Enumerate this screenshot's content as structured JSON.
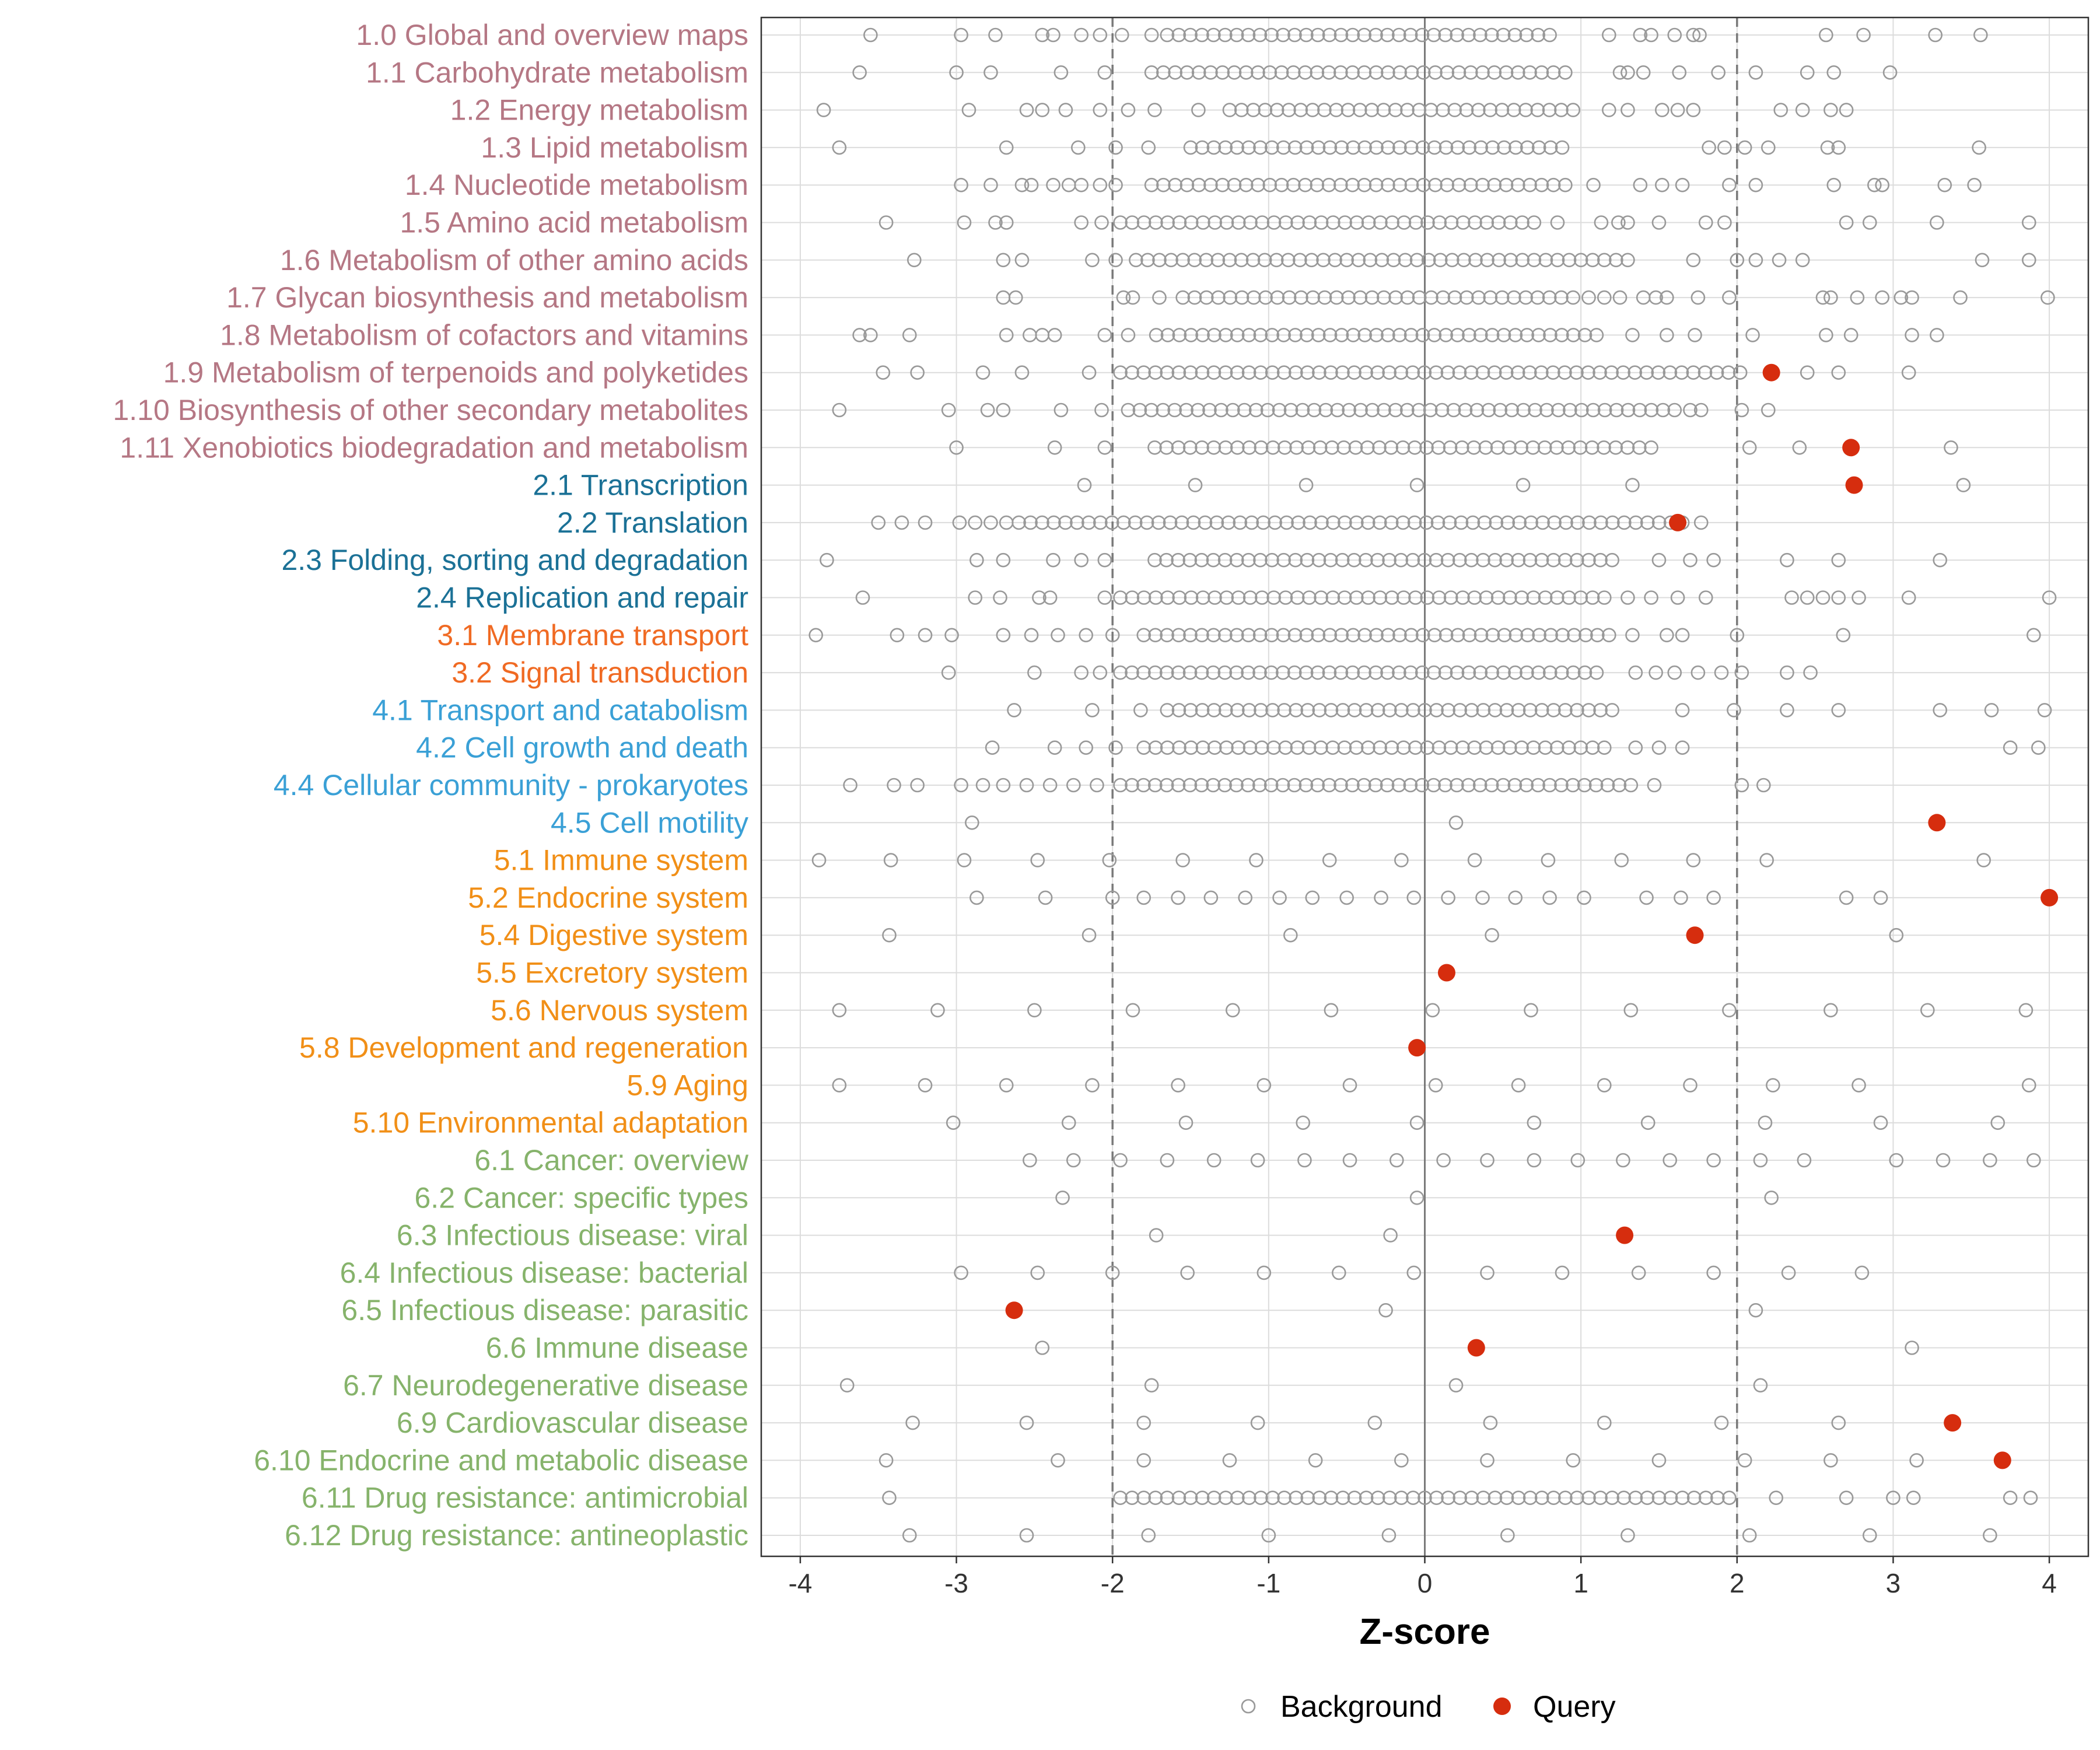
{
  "chart_data": {
    "type": "scatter",
    "title": "",
    "xlabel": "Z-score",
    "ylabel": "",
    "xlim": [
      -4.25,
      4.25
    ],
    "xticks": [
      -4,
      -3,
      -2,
      -1,
      0,
      1,
      2,
      3,
      4
    ],
    "reference_lines": {
      "solid": [
        0
      ],
      "dashed": [
        -2,
        2
      ]
    },
    "legend": {
      "placement": "bottom",
      "entries": [
        {
          "name": "Background",
          "style": "hollow",
          "color": "#999999"
        },
        {
          "name": "Query",
          "style": "filled",
          "color": "#d62d0e"
        }
      ]
    },
    "group_colors": {
      "1": "#b57784",
      "2": "#1b7196",
      "3": "#f06a23",
      "4": "#3aa0d6",
      "5": "#f18f17",
      "6": "#86b36b"
    },
    "categories": [
      {
        "label": "1.0 Global and overview maps",
        "group": "1",
        "background_extremes": [
          -3.55,
          -2.97,
          -2.75,
          -2.45,
          -2.38,
          -2.2,
          -2.08,
          -1.94,
          -1.75,
          1.18,
          1.38,
          1.45,
          1.6,
          1.72,
          1.76,
          2.57,
          2.81,
          3.27,
          3.56
        ],
        "background_dense_range": [
          -1.65,
          0.8
        ],
        "query": []
      },
      {
        "label": "1.1 Carbohydrate metabolism",
        "group": "1",
        "background_extremes": [
          -3.62,
          -3.0,
          -2.78,
          -2.33,
          -2.05,
          1.25,
          1.3,
          1.4,
          1.63,
          1.88,
          2.12,
          2.45,
          2.62,
          2.98
        ],
        "background_dense_range": [
          -1.75,
          0.9
        ],
        "query": []
      },
      {
        "label": "1.2 Energy metabolism",
        "group": "1",
        "background_extremes": [
          -3.85,
          -2.92,
          -2.55,
          -2.45,
          -2.3,
          -2.08,
          -1.9,
          -1.73,
          -1.45,
          1.18,
          1.3,
          1.52,
          1.62,
          1.72,
          2.28,
          2.42,
          2.6,
          2.7
        ],
        "background_dense_range": [
          -1.25,
          0.95
        ],
        "query": []
      },
      {
        "label": "1.3 Lipid metabolism",
        "group": "1",
        "background_extremes": [
          -3.75,
          -2.68,
          -2.22,
          -1.98,
          -1.77,
          1.82,
          1.92,
          2.05,
          2.2,
          2.58,
          2.65,
          3.55
        ],
        "background_dense_range": [
          -1.5,
          0.88
        ],
        "query": []
      },
      {
        "label": "1.4 Nucleotide metabolism",
        "group": "1",
        "background_extremes": [
          -2.97,
          -2.78,
          -2.58,
          -2.52,
          -2.38,
          -2.28,
          -2.2,
          -2.08,
          -1.98,
          1.08,
          1.38,
          1.52,
          1.65,
          1.95,
          2.12,
          2.62,
          2.88,
          2.93,
          3.33,
          3.52
        ],
        "background_dense_range": [
          -1.75,
          0.9
        ],
        "query": []
      },
      {
        "label": "1.5 Amino acid metabolism",
        "group": "1",
        "background_extremes": [
          -3.45,
          -2.95,
          -2.75,
          -2.68,
          -2.2,
          -2.07,
          0.85,
          1.13,
          1.24,
          1.3,
          1.5,
          1.8,
          1.92,
          2.7,
          2.85,
          3.28,
          3.87
        ],
        "background_dense_range": [
          -1.95,
          0.7
        ],
        "query": []
      },
      {
        "label": "1.6 Metabolism of other amino acids",
        "group": "1",
        "background_extremes": [
          -3.27,
          -2.7,
          -2.58,
          -2.13,
          -1.98,
          1.72,
          2.0,
          2.12,
          2.27,
          2.42,
          3.57,
          3.87
        ],
        "background_dense_range": [
          -1.85,
          1.3
        ],
        "query": []
      },
      {
        "label": "1.7 Glycan biosynthesis and metabolism",
        "group": "1",
        "background_extremes": [
          -2.7,
          -2.62,
          -1.93,
          -1.87,
          -1.7,
          1.05,
          1.15,
          1.25,
          1.4,
          1.48,
          1.55,
          1.75,
          1.95,
          2.55,
          2.6,
          2.77,
          2.93,
          3.05,
          3.12,
          3.43,
          3.99
        ],
        "background_dense_range": [
          -1.55,
          0.95
        ],
        "query": []
      },
      {
        "label": "1.8 Metabolism of cofactors and vitamins",
        "group": "1",
        "background_extremes": [
          -3.62,
          -3.55,
          -3.3,
          -2.68,
          -2.53,
          -2.45,
          -2.37,
          -2.05,
          -1.9,
          1.33,
          1.55,
          1.73,
          2.1,
          2.57,
          2.73,
          3.12,
          3.28
        ],
        "background_dense_range": [
          -1.72,
          1.1
        ],
        "query": []
      },
      {
        "label": "1.9 Metabolism of terpenoids and polyketides",
        "group": "1",
        "background_extremes": [
          -3.47,
          -3.25,
          -2.83,
          -2.58,
          -2.15,
          2.45,
          2.65,
          3.1
        ],
        "background_dense_range": [
          -1.95,
          2.02
        ],
        "query": [
          2.22
        ]
      },
      {
        "label": "1.10 Biosynthesis of other secondary metabolites",
        "group": "1",
        "background_extremes": [
          -3.75,
          -3.05,
          -2.8,
          -2.7,
          -2.33,
          -2.07,
          1.7,
          1.77,
          2.03,
          2.2
        ],
        "background_dense_range": [
          -1.9,
          1.6
        ],
        "query": []
      },
      {
        "label": "1.11 Xenobiotics biodegradation and metabolism",
        "group": "1",
        "background_extremes": [
          -3.0,
          -2.37,
          -2.05,
          2.08,
          2.4,
          3.37
        ],
        "background_dense_range": [
          -1.73,
          1.45
        ],
        "query": [
          2.73
        ]
      },
      {
        "label": "2.1 Transcription",
        "group": "2",
        "background_extremes": [
          -2.18,
          -1.47,
          -0.76,
          -0.05,
          0.63,
          1.33,
          3.45
        ],
        "background_dense_range": null,
        "query": [
          2.75
        ]
      },
      {
        "label": "2.2 Translation",
        "group": "2",
        "background_extremes": [
          -3.5,
          -3.35,
          -3.2,
          -2.98,
          -2.88,
          -2.78,
          -2.68,
          1.77
        ],
        "background_dense_range": [
          -2.6,
          1.65
        ],
        "query": [
          1.62
        ]
      },
      {
        "label": "2.3 Folding, sorting and degradation",
        "group": "2",
        "background_extremes": [
          -3.83,
          -2.87,
          -2.7,
          -2.38,
          -2.2,
          -2.05,
          1.5,
          1.7,
          1.85,
          2.32,
          2.65,
          3.3
        ],
        "background_dense_range": [
          -1.73,
          1.2
        ],
        "query": []
      },
      {
        "label": "2.4 Replication and repair",
        "group": "2",
        "background_extremes": [
          -3.6,
          -2.88,
          -2.72,
          -2.47,
          -2.4,
          -2.05,
          1.3,
          1.45,
          1.62,
          1.8,
          2.35,
          2.45,
          2.55,
          2.65,
          2.78,
          3.1,
          4.0
        ],
        "background_dense_range": [
          -1.95,
          1.15
        ],
        "query": []
      },
      {
        "label": "3.1 Membrane transport",
        "group": "3",
        "background_extremes": [
          -3.9,
          -3.38,
          -3.2,
          -3.03,
          -2.7,
          -2.52,
          -2.35,
          -2.17,
          -2.0,
          1.33,
          1.55,
          1.65,
          2.0,
          2.68,
          3.9
        ],
        "background_dense_range": [
          -1.8,
          1.18
        ],
        "query": []
      },
      {
        "label": "3.2 Signal transduction",
        "group": "3",
        "background_extremes": [
          -3.05,
          -2.5,
          -2.2,
          -2.08,
          1.35,
          1.48,
          1.6,
          1.75,
          1.9,
          2.03,
          2.32,
          2.47
        ],
        "background_dense_range": [
          -1.95,
          1.1
        ],
        "query": []
      },
      {
        "label": "4.1 Transport and catabolism",
        "group": "4",
        "background_extremes": [
          -2.63,
          -2.13,
          -1.82,
          1.65,
          1.98,
          2.32,
          2.65,
          3.3,
          3.63,
          3.97
        ],
        "background_dense_range": [
          -1.65,
          1.2
        ],
        "query": []
      },
      {
        "label": "4.2 Cell growth and death",
        "group": "4",
        "background_extremes": [
          -2.77,
          -2.37,
          -2.17,
          -1.98,
          1.35,
          1.5,
          1.65,
          3.75,
          3.93
        ],
        "background_dense_range": [
          -1.8,
          1.15
        ],
        "query": []
      },
      {
        "label": "4.4 Cellular community - prokaryotes",
        "group": "4",
        "background_extremes": [
          -3.68,
          -3.4,
          -3.25,
          -2.97,
          -2.83,
          -2.7,
          -2.55,
          -2.4,
          -2.25,
          -2.1,
          1.47,
          2.03,
          2.17
        ],
        "background_dense_range": [
          -1.95,
          1.32
        ],
        "query": []
      },
      {
        "label": "4.5 Cell motility",
        "group": "4",
        "background_extremes": [
          -2.9,
          0.2
        ],
        "background_dense_range": null,
        "query": [
          3.28
        ]
      },
      {
        "label": "5.1 Immune system",
        "group": "5",
        "background_extremes": [
          -3.88,
          -3.42,
          -2.95,
          -2.48,
          -2.02,
          -1.55,
          -1.08,
          -0.61,
          -0.15,
          0.32,
          0.79,
          1.26,
          1.72,
          2.19,
          3.58
        ],
        "background_dense_range": null,
        "query": []
      },
      {
        "label": "5.2 Endocrine system",
        "group": "5",
        "background_extremes": [
          -2.87,
          -2.43,
          -2.0,
          -1.8,
          -1.58,
          -1.37,
          -1.15,
          -0.93,
          -0.72,
          -0.5,
          -0.28,
          -0.07,
          0.15,
          0.37,
          0.58,
          0.8,
          1.02,
          1.42,
          1.64,
          1.85,
          2.7,
          2.92
        ],
        "background_dense_range": null,
        "query": [
          4.0
        ]
      },
      {
        "label": "5.4 Digestive system",
        "group": "5",
        "background_extremes": [
          -3.43,
          -2.15,
          -0.86,
          0.43,
          3.02
        ],
        "background_dense_range": null,
        "query": [
          1.73
        ]
      },
      {
        "label": "5.5 Excretory system",
        "group": "5",
        "background_extremes": [],
        "background_dense_range": null,
        "query": [
          0.14
        ]
      },
      {
        "label": "5.6 Nervous system",
        "group": "5",
        "background_extremes": [
          -3.75,
          -3.12,
          -2.5,
          -1.87,
          -1.23,
          -0.6,
          0.05,
          0.68,
          1.32,
          1.95,
          2.6,
          3.22,
          3.85
        ],
        "background_dense_range": null,
        "query": []
      },
      {
        "label": "5.8 Development and regeneration",
        "group": "5",
        "background_extremes": [],
        "background_dense_range": null,
        "query": [
          -0.05
        ]
      },
      {
        "label": "5.9 Aging",
        "group": "5",
        "background_extremes": [
          -3.75,
          -3.2,
          -2.68,
          -2.13,
          -1.58,
          -1.03,
          -0.48,
          0.07,
          0.6,
          1.15,
          1.7,
          2.23,
          2.78,
          3.87
        ],
        "background_dense_range": null,
        "query": []
      },
      {
        "label": "5.10 Environmental adaptation",
        "group": "5",
        "background_extremes": [
          -3.02,
          -2.28,
          -1.53,
          -0.78,
          -0.05,
          0.7,
          1.43,
          2.18,
          2.92,
          3.67
        ],
        "background_dense_range": null,
        "query": []
      },
      {
        "label": "6.1 Cancer: overview",
        "group": "6",
        "background_extremes": [
          -2.53,
          -2.25,
          -1.95,
          -1.65,
          -1.35,
          -1.07,
          -0.77,
          -0.48,
          -0.18,
          0.12,
          0.4,
          0.7,
          0.98,
          1.27,
          1.57,
          1.85,
          2.15,
          2.43,
          3.02,
          3.32,
          3.62,
          3.9
        ],
        "background_dense_range": null,
        "query": []
      },
      {
        "label": "6.2 Cancer: specific types",
        "group": "6",
        "background_extremes": [
          -2.32,
          -0.05,
          2.22
        ],
        "background_dense_range": null,
        "query": []
      },
      {
        "label": "6.3 Infectious disease: viral",
        "group": "6",
        "background_extremes": [
          -1.72,
          -0.22
        ],
        "background_dense_range": null,
        "query": [
          1.28
        ]
      },
      {
        "label": "6.4 Infectious disease: bacterial",
        "group": "6",
        "background_extremes": [
          -2.97,
          -2.48,
          -2.0,
          -1.52,
          -1.03,
          -0.55,
          -0.07,
          0.4,
          0.88,
          1.37,
          1.85,
          2.33,
          2.8
        ],
        "background_dense_range": null,
        "query": []
      },
      {
        "label": "6.5 Infectious disease: parasitic",
        "group": "6",
        "background_extremes": [
          -0.25,
          2.12
        ],
        "background_dense_range": null,
        "query": [
          -2.63
        ]
      },
      {
        "label": "6.6 Immune disease",
        "group": "6",
        "background_extremes": [
          -2.45,
          3.12
        ],
        "background_dense_range": null,
        "query": [
          0.33
        ]
      },
      {
        "label": "6.7 Neurodegenerative disease",
        "group": "6",
        "background_extremes": [
          -3.7,
          -1.75,
          0.2,
          2.15
        ],
        "background_dense_range": null,
        "query": []
      },
      {
        "label": "6.9 Cardiovascular disease",
        "group": "6",
        "background_extremes": [
          -3.28,
          -2.55,
          -1.8,
          -1.07,
          -0.32,
          0.42,
          1.15,
          1.9,
          2.65
        ],
        "background_dense_range": null,
        "query": [
          3.38
        ]
      },
      {
        "label": "6.10 Endocrine and metabolic disease",
        "group": "6",
        "background_extremes": [
          -3.45,
          -2.35,
          -1.8,
          -1.25,
          -0.7,
          -0.15,
          0.4,
          0.95,
          1.5,
          2.05,
          2.6,
          3.15
        ],
        "background_dense_range": null,
        "query": [
          3.7
        ]
      },
      {
        "label": "6.11 Drug resistance: antimicrobial",
        "group": "6",
        "background_extremes": [
          -3.43,
          2.25,
          2.7,
          3.0,
          3.13,
          3.75,
          3.88
        ],
        "background_dense_range": [
          -1.95,
          1.95
        ],
        "query": []
      },
      {
        "label": "6.12 Drug resistance: antineoplastic",
        "group": "6",
        "background_extremes": [
          -3.3,
          -2.55,
          -1.77,
          -1.0,
          -0.23,
          0.53,
          1.3,
          2.08,
          2.85,
          3.62
        ],
        "background_dense_range": null,
        "query": []
      }
    ]
  }
}
